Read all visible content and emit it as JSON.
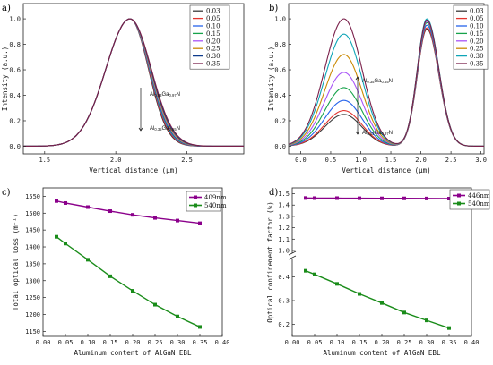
{
  "chart_data": [
    {
      "id": "a",
      "type": "line",
      "panel_label": "a)",
      "xlabel": "Vertical distance (μm)",
      "ylabel": "Intensity (a.u.)",
      "xlim": [
        1.35,
        2.9
      ],
      "ylim": [
        -0.06,
        1.12
      ],
      "xticks": [
        "1.5",
        "2.0",
        "2.5"
      ],
      "xtick_values": [
        1.5,
        2.0,
        2.5
      ],
      "yticks": [
        "0.0",
        "0.2",
        "0.4",
        "0.6",
        "0.8",
        "1.0"
      ],
      "ytick_values": [
        0.0,
        0.2,
        0.4,
        0.6,
        0.8,
        1.0
      ],
      "legend_placement": "top-right",
      "annotations": [
        {
          "text": "Al0.03Ga0.97N",
          "main": "Al",
          "sub1": "0.03",
          "mid": "Ga",
          "sub2": "0.97",
          "tail": "N"
        },
        {
          "text": "Al0.35Ga0.65N",
          "main": "Al",
          "sub1": "0.35",
          "mid": "Ga",
          "sub2": "0.65",
          "tail": "N"
        }
      ],
      "profile": {
        "peak_x": 2.1,
        "left_width": 0.17,
        "right_width_min": 0.13,
        "right_width_max": 0.15
      },
      "series": [
        {
          "name": "0.03",
          "color": "#3a3a3a"
        },
        {
          "name": "0.05",
          "color": "#e3342f"
        },
        {
          "name": "0.10",
          "color": "#2563eb"
        },
        {
          "name": "0.15",
          "color": "#16a34a"
        },
        {
          "name": "0.20",
          "color": "#a855f7"
        },
        {
          "name": "0.25",
          "color": "#ca8a04"
        },
        {
          "name": "0.30",
          "color": "#0e3b8c"
        },
        {
          "name": "0.35",
          "color": "#7a1f4a"
        }
      ]
    },
    {
      "id": "b",
      "type": "line",
      "panel_label": "b)",
      "xlabel": "Vertical distance (μm)",
      "ylabel": "Intensity (a.u.)",
      "xlim": [
        -0.2,
        3.05
      ],
      "ylim": [
        -0.06,
        1.12
      ],
      "xticks": [
        "0.0",
        "0.5",
        "1.0",
        "1.5",
        "2.0",
        "2.5",
        "3.0"
      ],
      "xtick_values": [
        0.0,
        0.5,
        1.0,
        1.5,
        2.0,
        2.5,
        3.0
      ],
      "yticks": [
        "0.0",
        "0.2",
        "0.4",
        "0.6",
        "0.8",
        "1.0"
      ],
      "ytick_values": [
        0.0,
        0.2,
        0.4,
        0.6,
        0.8,
        1.0
      ],
      "legend_placement": "top-right",
      "annotations": [
        {
          "text": "Al0.35Ga0.65N",
          "main": "Al",
          "sub1": "0.35",
          "mid": "Ga",
          "sub2": "0.65",
          "tail": "N"
        },
        {
          "text": "Al0.03Ga0.97N",
          "main": "Al",
          "sub1": "0.03",
          "mid": "Ga",
          "sub2": "0.97",
          "tail": "N"
        }
      ],
      "profile": {
        "first_peak_x": 0.72,
        "second_peak_x": 2.1
      },
      "series": [
        {
          "name": "0.03",
          "color": "#3a3a3a",
          "first_peak": 0.25,
          "second_peak": 0.92
        },
        {
          "name": "0.05",
          "color": "#e3342f",
          "first_peak": 0.28,
          "second_peak": 0.93
        },
        {
          "name": "0.10",
          "color": "#2563eb",
          "first_peak": 0.36,
          "second_peak": 0.95
        },
        {
          "name": "0.15",
          "color": "#16a34a",
          "first_peak": 0.46,
          "second_peak": 0.97
        },
        {
          "name": "0.20",
          "color": "#a855f7",
          "first_peak": 0.58,
          "second_peak": 0.98
        },
        {
          "name": "0.25",
          "color": "#ca8a04",
          "first_peak": 0.72,
          "second_peak": 0.99
        },
        {
          "name": "0.30",
          "color": "#0ea5b7",
          "first_peak": 0.88,
          "second_peak": 1.0
        },
        {
          "name": "0.35",
          "color": "#7a1f4a",
          "first_peak": 1.0,
          "second_peak": 0.99
        }
      ]
    },
    {
      "id": "c",
      "type": "line",
      "panel_label": "c)",
      "xlabel": "Aluminum content of AlGaN EBL",
      "ylabel": "Total optical loss (m⁻¹)",
      "xlim": [
        0.0,
        0.4
      ],
      "ylim": [
        1135,
        1575
      ],
      "xticks": [
        "0.00",
        "0.05",
        "0.10",
        "0.15",
        "0.20",
        "0.25",
        "0.30",
        "0.35",
        "0.40"
      ],
      "xtick_values": [
        0.0,
        0.05,
        0.1,
        0.15,
        0.2,
        0.25,
        0.3,
        0.35,
        0.4
      ],
      "yticks": [
        "1150",
        "1200",
        "1250",
        "1300",
        "1350",
        "1400",
        "1450",
        "1500",
        "1550"
      ],
      "ytick_values": [
        1150,
        1200,
        1250,
        1300,
        1350,
        1400,
        1450,
        1500,
        1550
      ],
      "legend_placement": "top-right",
      "x": [
        0.03,
        0.05,
        0.1,
        0.15,
        0.2,
        0.25,
        0.3,
        0.35
      ],
      "series": [
        {
          "name": "409nm",
          "color": "#8b008b",
          "values": [
            1536,
            1530,
            1518,
            1506,
            1495,
            1486,
            1478,
            1470
          ]
        },
        {
          "name": "540nm",
          "color": "#1a8c1a",
          "values": [
            1430,
            1410,
            1362,
            1313,
            1270,
            1229,
            1194,
            1163
          ]
        }
      ]
    },
    {
      "id": "d",
      "type": "line",
      "panel_label": "d)",
      "xlabel": "Aluminum content of AlGaN EBL",
      "ylabel": "Optical confinement factor (%)",
      "xlim": [
        0.0,
        0.4
      ],
      "ylim_upper": [
        1.0,
        1.52
      ],
      "ylim_lower": [
        0.15,
        0.465
      ],
      "axis_break": true,
      "xticks": [
        "0.00",
        "0.05",
        "0.10",
        "0.15",
        "0.20",
        "0.25",
        "0.30",
        "0.35",
        "0.40"
      ],
      "xtick_values": [
        0.0,
        0.05,
        0.1,
        0.15,
        0.2,
        0.25,
        0.3,
        0.35,
        0.4
      ],
      "yticks_upper": [
        "1.0",
        "1.1",
        "1.2",
        "1.3",
        "1.4",
        "1.5"
      ],
      "ytick_values_upper": [
        1.0,
        1.1,
        1.2,
        1.3,
        1.4,
        1.5
      ],
      "yticks_lower": [
        "0.2",
        "0.3",
        "0.4"
      ],
      "ytick_values_lower": [
        0.2,
        0.3,
        0.4
      ],
      "legend_placement": "top-right",
      "x": [
        0.03,
        0.05,
        0.1,
        0.15,
        0.2,
        0.25,
        0.3,
        0.35
      ],
      "series": [
        {
          "name": "446nm",
          "color": "#8b008b",
          "values": [
            1.462,
            1.461,
            1.461,
            1.46,
            1.459,
            1.459,
            1.458,
            1.457
          ]
        },
        {
          "name": "540nm",
          "color": "#1a8c1a",
          "values": [
            0.425,
            0.41,
            0.37,
            0.328,
            0.29,
            0.25,
            0.217,
            0.185
          ]
        }
      ]
    }
  ]
}
